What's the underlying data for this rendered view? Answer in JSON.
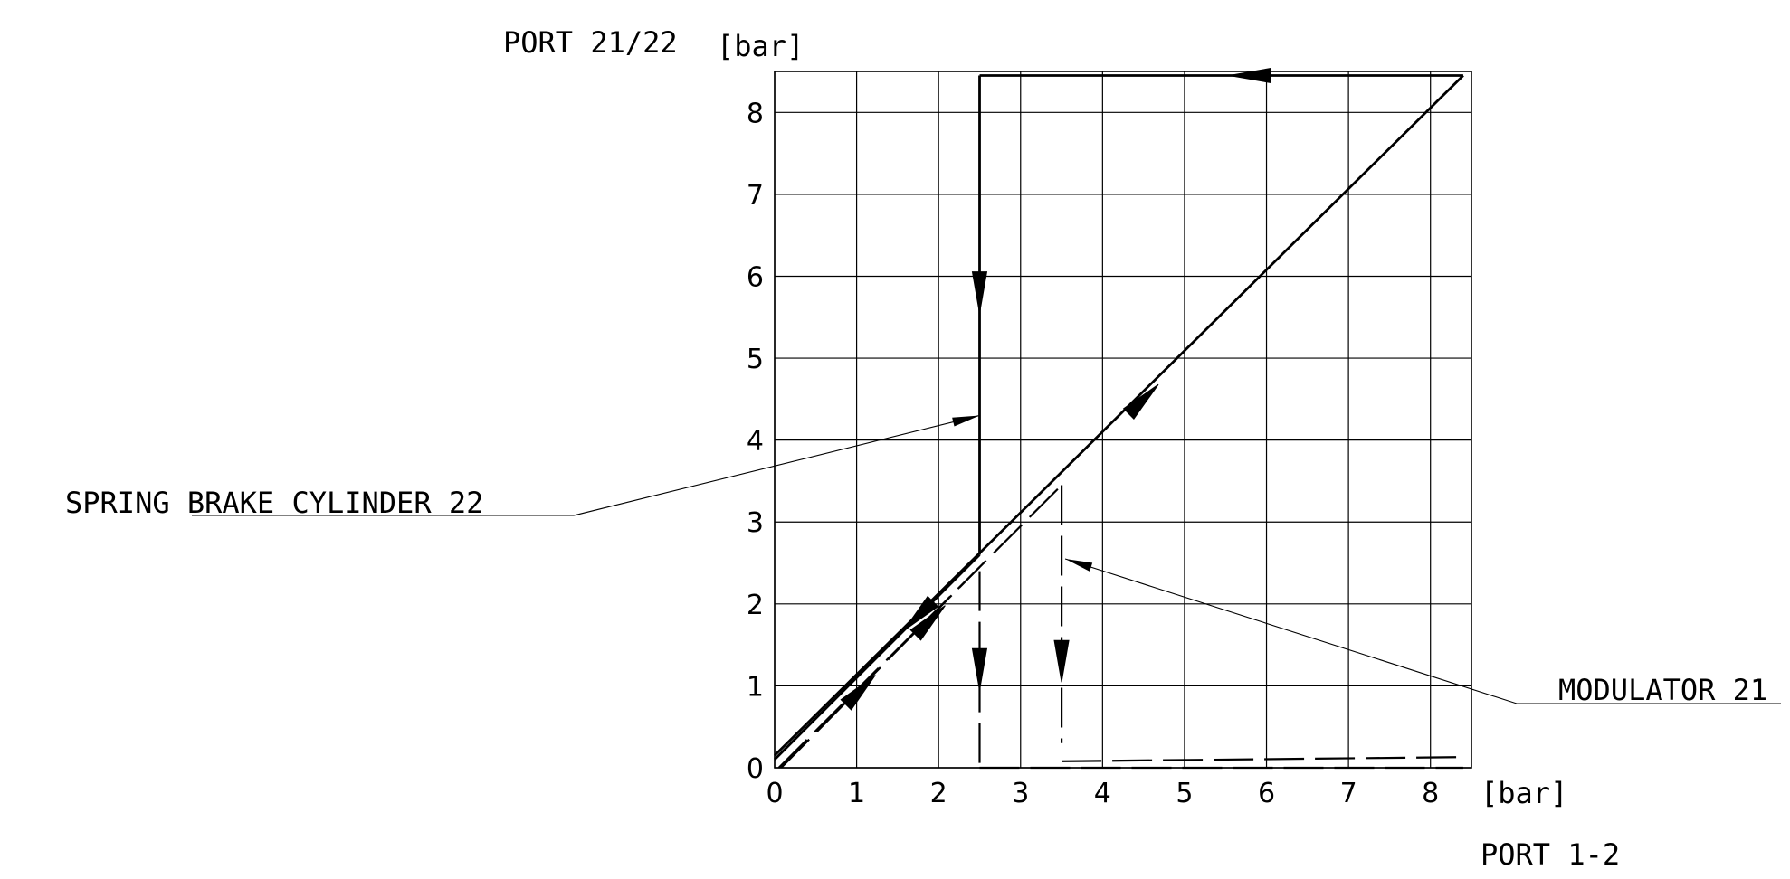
{
  "chart_data": {
    "type": "line",
    "title": "",
    "ylabel": "PORT 21/22",
    "yunit": "[bar]",
    "xlabel": "PORT 1-2",
    "xunit": "[bar]",
    "xlim": [
      0,
      8.5
    ],
    "ylim": [
      0,
      8.5
    ],
    "x_ticks": [
      "0",
      "1",
      "2",
      "3",
      "4",
      "5",
      "6",
      "7",
      "8"
    ],
    "y_ticks": [
      "0",
      "1",
      "2",
      "3",
      "4",
      "5",
      "6",
      "7",
      "8"
    ],
    "grid": true,
    "series": [
      {
        "name": "SPRING BRAKE CYLINDER 22",
        "style": "solid",
        "segments": [
          {
            "points": [
              [
                0,
                0.15
              ],
              [
                8.4,
                8.45
              ]
            ],
            "arrow_at": [
              4.5,
              4.5
            ],
            "arrow_dir": "up"
          },
          {
            "points": [
              [
                8.4,
                8.45
              ],
              [
                2.5,
                8.45
              ]
            ],
            "arrow_at": [
              5.8,
              8.45
            ],
            "arrow_dir": "left"
          },
          {
            "points": [
              [
                2.5,
                8.45
              ],
              [
                2.5,
                2.6
              ]
            ],
            "arrow_at": [
              2.5,
              5.8
            ],
            "arrow_dir": "down"
          },
          {
            "points": [
              [
                2.5,
                2.6
              ],
              [
                0,
                0.1
              ]
            ],
            "arrow_at": [
              1.75,
              1.85
            ],
            "arrow_dir": "down"
          }
        ]
      },
      {
        "name": "MODULATOR  21",
        "style": "dashed",
        "segments": [
          {
            "points": [
              [
                0.08,
                0
              ],
              [
                2.5,
                2.45
              ]
            ],
            "arrow_at": [
              1.05,
              0.95
            ],
            "arrow_dir": "down"
          },
          {
            "points": [
              [
                2.5,
                2.4
              ],
              [
                2.5,
                0
              ]
            ],
            "arrow_at": [
              2.5,
              1.2
            ],
            "arrow_dir": "up"
          },
          {
            "points": [
              [
                2.5,
                0
              ],
              [
                8.4,
                0
              ]
            ]
          },
          {
            "points": [
              [
                0.05,
                0
              ],
              [
                3.5,
                3.45
              ]
            ],
            "arrow_at": [
              1.9,
              1.8
            ],
            "arrow_dir": "down"
          },
          {
            "points": [
              [
                3.5,
                3.45
              ],
              [
                3.5,
                0.3
              ]
            ],
            "arrow_at": [
              3.5,
              1.3
            ],
            "arrow_dir": "down"
          },
          {
            "points": [
              [
                3.5,
                0.08
              ],
              [
                8.4,
                0.13
              ]
            ]
          }
        ]
      }
    ],
    "annotations": [
      {
        "text": "SPRING BRAKE CYLINDER 22",
        "target": [
          2.5,
          4.3
        ]
      },
      {
        "text": "MODULATOR  21",
        "target": [
          3.5,
          2.55
        ]
      }
    ]
  }
}
